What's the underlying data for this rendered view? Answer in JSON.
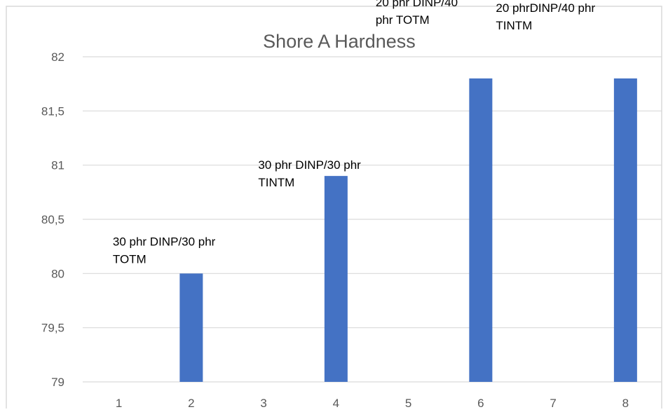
{
  "chart_data": {
    "type": "bar",
    "title": "Shore A Hardness",
    "xlabel": "",
    "ylabel": "",
    "categories": [
      "1",
      "2",
      "3",
      "4",
      "5",
      "6",
      "7",
      "8"
    ],
    "values": [
      null,
      80,
      null,
      80.9,
      null,
      81.8,
      null,
      81.8
    ],
    "ylim": [
      79,
      82
    ],
    "yticks": [
      "79",
      "79,5",
      "80",
      "80,5",
      "81",
      "81,5",
      "82"
    ],
    "ytick_values": [
      79,
      79.5,
      80,
      80.5,
      81,
      81.5,
      82
    ],
    "grid": true,
    "legend": "none",
    "bar_color": "#4472C4",
    "annotations": [
      {
        "lines": [
          "30 phr DINP/30 phr",
          "TOTM"
        ],
        "category": "2"
      },
      {
        "lines": [
          "30 phr DINP/30 phr",
          "TINTM"
        ],
        "category": "4"
      },
      {
        "lines": [
          "20 phr DINP/40",
          "phr TOTM"
        ],
        "category": "6"
      },
      {
        "lines": [
          "20 phrDINP/40 phr",
          "TINTM"
        ],
        "category": "8"
      }
    ]
  }
}
